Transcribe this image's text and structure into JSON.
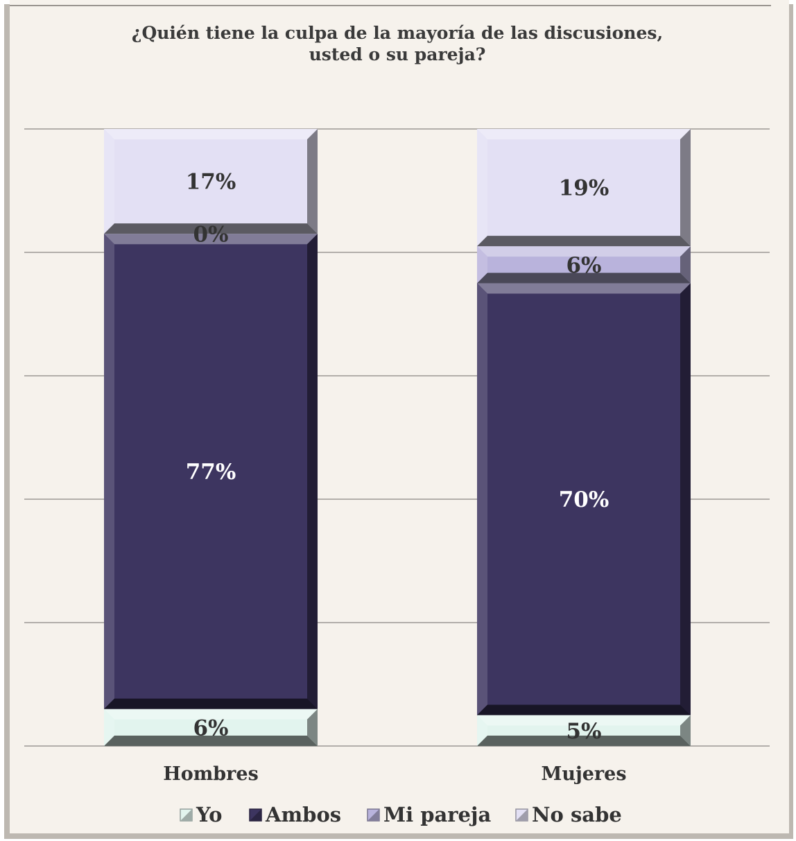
{
  "chart_data": {
    "type": "bar",
    "stacked": true,
    "percent": true,
    "title": "¿Quién tiene la culpa de la mayoría de las discusiones,",
    "title_line2": "usted o su pareja?",
    "categories": [
      "Hombres",
      "Mujeres"
    ],
    "ylim": [
      0,
      100
    ],
    "grid": true,
    "legend_position": "bottom",
    "series": [
      {
        "name": "Yo",
        "values": [
          6,
          5
        ],
        "labels": [
          "6%",
          "5%"
        ],
        "color": "#e2f4ee"
      },
      {
        "name": "Ambos",
        "values": [
          77,
          70
        ],
        "labels": [
          "77%",
          "70%"
        ],
        "color": "#3d3560"
      },
      {
        "name": "Mi pareja",
        "values": [
          0,
          6
        ],
        "labels": [
          "0%",
          "6%"
        ],
        "color": "#b9b3dc"
      },
      {
        "name": "No sabe",
        "values": [
          17,
          19
        ],
        "labels": [
          "17%",
          "19%"
        ],
        "color": "#e3e0f4"
      }
    ]
  }
}
